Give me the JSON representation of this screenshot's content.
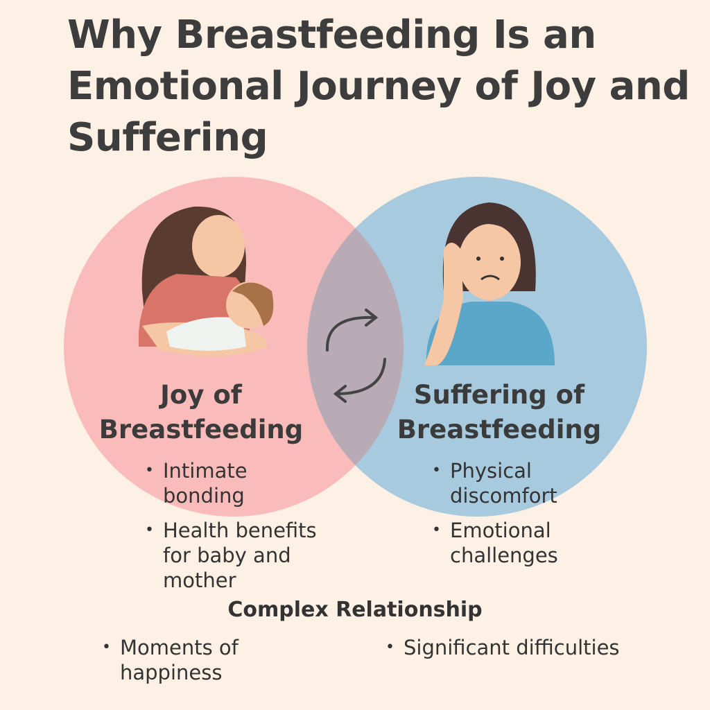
{
  "title": "Why Breastfeeding Is an Emotional Journey of Joy and Suffering",
  "colors": {
    "background": "#fdf0e4",
    "joy_circle": "#f9bcbb",
    "suffering_circle": "#a7cade",
    "overlap": "#b9abb6"
  },
  "joy": {
    "heading_line1": "Joy of",
    "heading_line2": "Breastfeeding",
    "bullets": [
      "Intimate bonding",
      "Health benefits for baby and mother"
    ],
    "icon": "mother-nursing-baby-illustration"
  },
  "suffering": {
    "heading_line1": "Suffering of",
    "heading_line2": "Breastfeeding",
    "bullets": [
      "Physical discomfort",
      "Emotional challenges"
    ],
    "icon": "sad-woman-illustration"
  },
  "overlap": {
    "icon": "cycle-arrows-icon"
  },
  "complex": {
    "heading": "Complex Relationship",
    "bullets": [
      "Moments of happiness",
      "Significant difficulties"
    ]
  }
}
